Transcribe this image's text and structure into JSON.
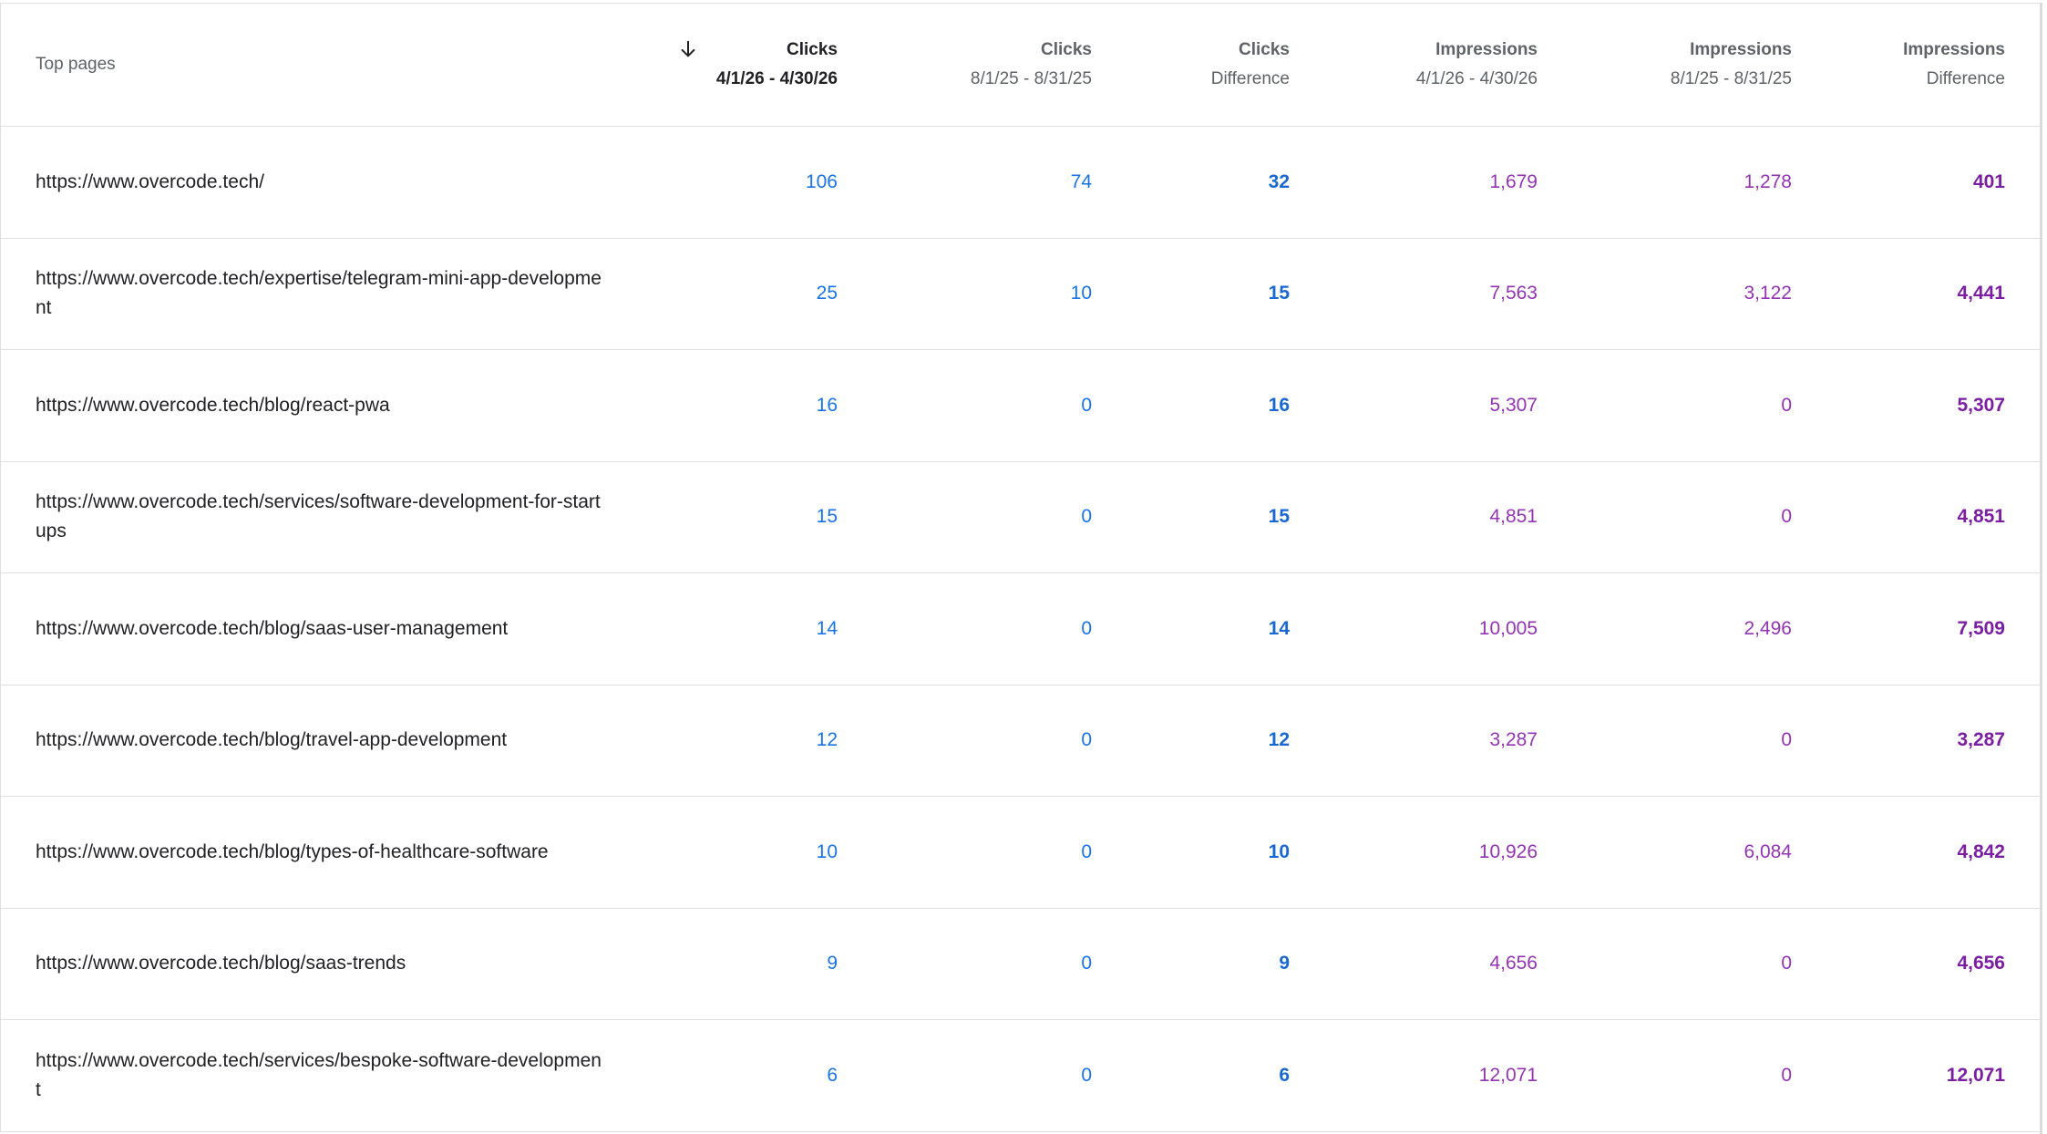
{
  "header": {
    "page_label": "Top pages",
    "columns": [
      {
        "top": "Clicks",
        "bottom": "4/1/26 - 4/30/26"
      },
      {
        "top": "Clicks",
        "bottom": "8/1/25 - 8/31/25"
      },
      {
        "top": "Clicks",
        "bottom": "Difference"
      },
      {
        "top": "Impressions",
        "bottom": "4/1/26 - 4/30/26"
      },
      {
        "top": "Impressions",
        "bottom": "8/1/25 - 8/31/25"
      },
      {
        "top": "Impressions",
        "bottom": "Difference"
      }
    ],
    "sort_icon": "arrow-down-icon"
  },
  "rows": [
    {
      "page": "https://www.overcode.tech/",
      "clicks_current": "106",
      "clicks_previous": "74",
      "clicks_diff": "32",
      "impr_current": "1,679",
      "impr_previous": "1,278",
      "impr_diff": "401"
    },
    {
      "page": "https://www.overcode.tech/expertise/telegram-mini-app-development",
      "clicks_current": "25",
      "clicks_previous": "10",
      "clicks_diff": "15",
      "impr_current": "7,563",
      "impr_previous": "3,122",
      "impr_diff": "4,441"
    },
    {
      "page": "https://www.overcode.tech/blog/react-pwa",
      "clicks_current": "16",
      "clicks_previous": "0",
      "clicks_diff": "16",
      "impr_current": "5,307",
      "impr_previous": "0",
      "impr_diff": "5,307"
    },
    {
      "page": "https://www.overcode.tech/services/software-development-for-startups",
      "clicks_current": "15",
      "clicks_previous": "0",
      "clicks_diff": "15",
      "impr_current": "4,851",
      "impr_previous": "0",
      "impr_diff": "4,851"
    },
    {
      "page": "https://www.overcode.tech/blog/saas-user-management",
      "clicks_current": "14",
      "clicks_previous": "0",
      "clicks_diff": "14",
      "impr_current": "10,005",
      "impr_previous": "2,496",
      "impr_diff": "7,509"
    },
    {
      "page": "https://www.overcode.tech/blog/travel-app-development",
      "clicks_current": "12",
      "clicks_previous": "0",
      "clicks_diff": "12",
      "impr_current": "3,287",
      "impr_previous": "0",
      "impr_diff": "3,287"
    },
    {
      "page": "https://www.overcode.tech/blog/types-of-healthcare-software",
      "clicks_current": "10",
      "clicks_previous": "0",
      "clicks_diff": "10",
      "impr_current": "10,926",
      "impr_previous": "6,084",
      "impr_diff": "4,842"
    },
    {
      "page": "https://www.overcode.tech/blog/saas-trends",
      "clicks_current": "9",
      "clicks_previous": "0",
      "clicks_diff": "9",
      "impr_current": "4,656",
      "impr_previous": "0",
      "impr_diff": "4,656"
    },
    {
      "page": "https://www.overcode.tech/services/bespoke-software-development",
      "clicks_current": "6",
      "clicks_previous": "0",
      "clicks_diff": "6",
      "impr_current": "12,071",
      "impr_previous": "0",
      "impr_diff": "12,071"
    }
  ],
  "colors": {
    "clicks": "#1a73e8",
    "impressions": "#9334b3"
  }
}
